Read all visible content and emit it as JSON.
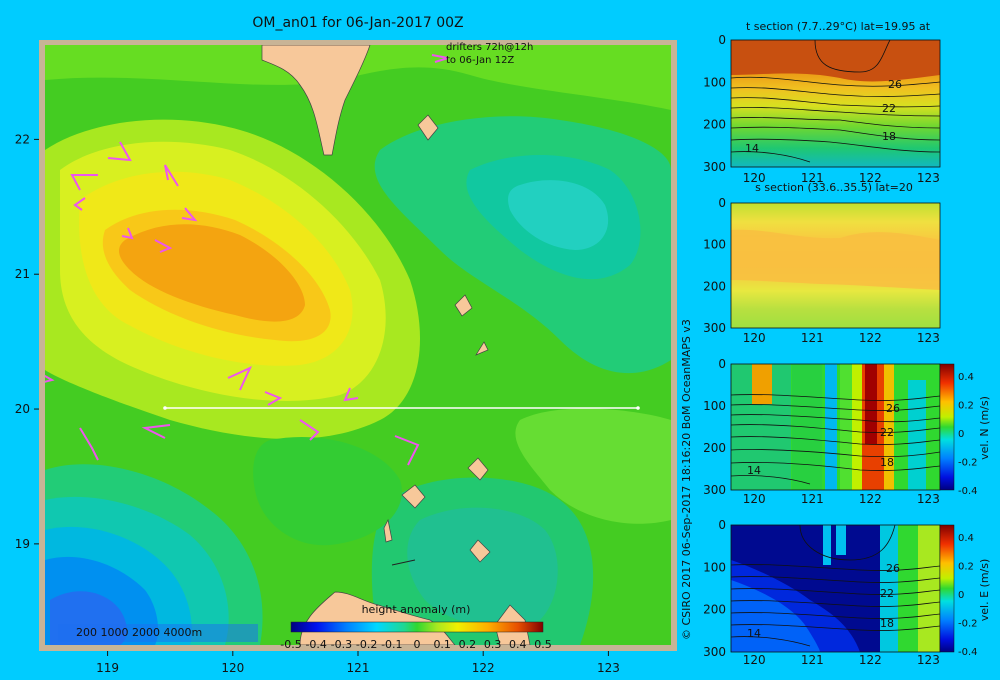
{
  "colors": {
    "background": "#00ccff",
    "frame": "#c8b496",
    "land": "#f7c89a",
    "track": "#ffffff",
    "contour": "#111111",
    "drifter": "#ee55ee"
  },
  "main_map": {
    "title": "OM_an01 for 06-Jan-2017 00Z",
    "drifter_note_line1": "drifters 72h@12h",
    "drifter_note_line2": "to 06-Jan 12Z",
    "depth_legend": "200  1000  2000  4000m",
    "xticks": [
      "119",
      "120",
      "121",
      "122",
      "123"
    ],
    "yticks": [
      "22",
      "21",
      "20",
      "19"
    ],
    "credit": "© CSIRO 2017   06-Sep-2017 18:16:20 BoM OceanMAPS v3"
  },
  "chart_data": [
    {
      "type": "heatmap",
      "name": "height anomaly map",
      "title": "OM_an01 for 06-Jan-2017 00Z",
      "xlim": [
        118.5,
        123.5
      ],
      "ylim": [
        18.25,
        22.7
      ],
      "colorbar_label": "height anomaly (m)",
      "colorbar_ticks": [
        "-0.5",
        "-0.4",
        "-0.3",
        "-0.2",
        "-0.1",
        "0",
        "0.1",
        "0.2",
        "0.3",
        "0.4",
        "0.5"
      ],
      "section_line": {
        "lat": 20,
        "lon_from": 119.5,
        "lon_to": 123.2
      },
      "features": [
        {
          "kind": "anticyclonic eddy max",
          "lon": 120.3,
          "lat": 21.0,
          "value": 0.3
        },
        {
          "kind": "cyclonic eddy min",
          "lon": 119.0,
          "lat": 18.5,
          "value": -0.3
        },
        {
          "kind": "low",
          "lon": 122.4,
          "lat": 21.4,
          "value": -0.15
        }
      ]
    },
    {
      "type": "heatmap",
      "name": "temperature section",
      "title": "t section (7.7..29°C) lat=19.95 at",
      "xticks": [
        "120",
        "121",
        "122",
        "123"
      ],
      "yticks": [
        "0",
        "100",
        "200",
        "300"
      ],
      "contour_labels": [
        "26",
        "22",
        "18",
        "14"
      ]
    },
    {
      "type": "heatmap",
      "name": "salinity section",
      "title": "s section (33.6..35.5) lat=20",
      "xticks": [
        "120",
        "121",
        "122",
        "123"
      ],
      "yticks": [
        "0",
        "100",
        "200",
        "300"
      ]
    },
    {
      "type": "heatmap",
      "name": "northward velocity section",
      "colorbar_label": "vel. N (m/s)",
      "colorbar_ticks": [
        "0.4",
        "0.2",
        "0",
        "-0.2",
        "-0.4"
      ],
      "xticks": [
        "120",
        "121",
        "122",
        "123"
      ],
      "yticks": [
        "0",
        "100",
        "200",
        "300"
      ],
      "contour_labels": [
        "26",
        "22",
        "18",
        "14"
      ]
    },
    {
      "type": "heatmap",
      "name": "eastward velocity section",
      "colorbar_label": "vel. E (m/s)",
      "colorbar_ticks": [
        "0.4",
        "0.2",
        "0",
        "-0.2",
        "-0.4"
      ],
      "xticks": [
        "120",
        "121",
        "122",
        "123"
      ],
      "yticks": [
        "0",
        "100",
        "200",
        "300"
      ],
      "contour_labels": [
        "26",
        "22",
        "18",
        "14"
      ]
    }
  ]
}
